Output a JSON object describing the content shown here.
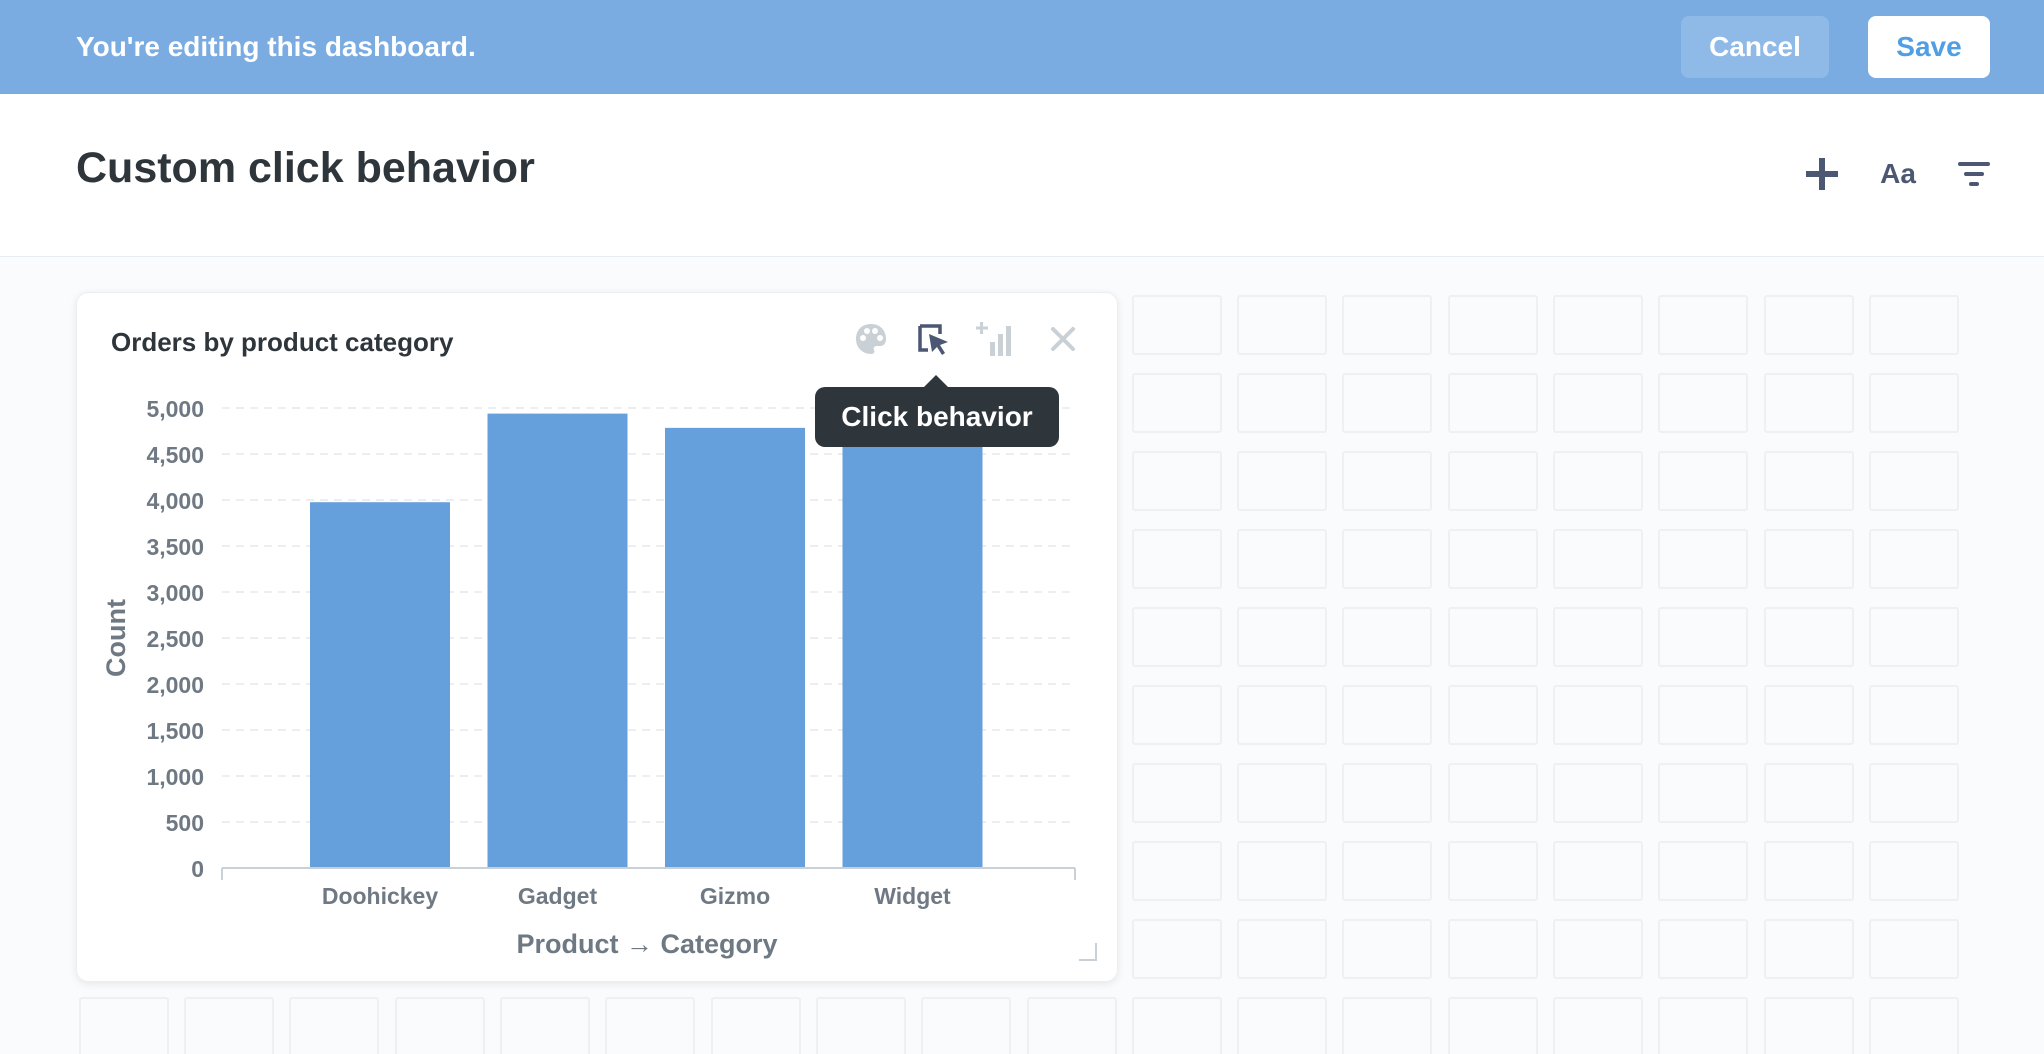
{
  "edit_bar": {
    "message": "You're editing this dashboard.",
    "cancel_label": "Cancel",
    "save_label": "Save"
  },
  "header": {
    "title": "Custom click behavior",
    "text_icon_label": "Aa",
    "icons": [
      "plus-icon",
      "text-card-icon",
      "filter-icon"
    ]
  },
  "card": {
    "title": "Orders by product category",
    "actions": [
      "palette-icon",
      "click-behavior-icon",
      "add-series-icon",
      "close-icon"
    ],
    "tooltip": "Click behavior"
  },
  "colors": {
    "banner": "#7aace2",
    "bar": "#659fdc",
    "text_dark": "#2e353b",
    "axis_text": "#6f7983"
  },
  "chart_data": {
    "type": "bar",
    "categories": [
      "Doohickey",
      "Gadget",
      "Gizmo",
      "Widget"
    ],
    "values": [
      3976,
      4939,
      4784,
      4993
    ],
    "xlabel": "Product → Category",
    "ylabel": "Count",
    "ylim": [
      0,
      5000
    ],
    "yticks": [
      "0",
      "500",
      "1,000",
      "1,500",
      "2,000",
      "2,500",
      "3,000",
      "3,500",
      "4,000",
      "4,500",
      "5,000"
    ],
    "grid": true
  }
}
